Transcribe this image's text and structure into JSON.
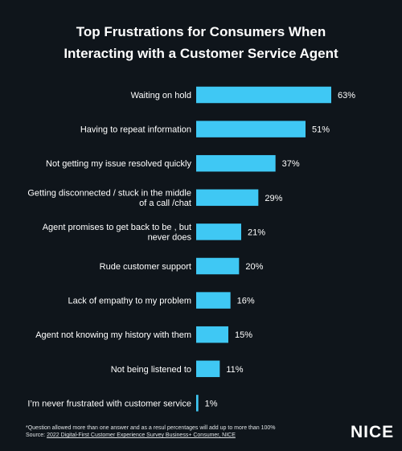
{
  "chart_data": {
    "type": "bar",
    "orientation": "horizontal",
    "title": [
      "Top Frustrations for Consumers When",
      "Interacting with a Customer Service Agent"
    ],
    "categories": [
      [
        "Waiting on hold"
      ],
      [
        "Having to repeat information"
      ],
      [
        "Not getting my issue resolved quickly"
      ],
      [
        "Getting disconnected  / stuck in the middle",
        "of a call /chat"
      ],
      [
        "Agent promises to get back to be   , but",
        "never does"
      ],
      [
        "Rude customer support"
      ],
      [
        "Lack of empathy to my problem"
      ],
      [
        "Agent not knowing my history with them"
      ],
      [
        "Not being listened to"
      ],
      [
        "I’m never frustrated with customer service"
      ]
    ],
    "values": [
      63,
      51,
      37,
      29,
      21,
      20,
      16,
      15,
      11,
      1
    ],
    "value_labels": [
      "63%",
      "51%",
      "37%",
      "29%",
      "21%",
      "20%",
      "16%",
      "15%",
      "11%",
      "1%"
    ],
    "xlim": [
      0,
      63
    ],
    "bar_color": "#3fc8f4",
    "grid": false,
    "legend": "none"
  },
  "footnote": {
    "line1": "*Question allowed more than one answer and as a resul percentages will add up to more than 100%",
    "line2_prefix": "Source: ",
    "line2_link": "2022 Digital-First Customer Experience Survey Business+ Consumer, NICE"
  },
  "logo": {
    "text": "NICE"
  }
}
